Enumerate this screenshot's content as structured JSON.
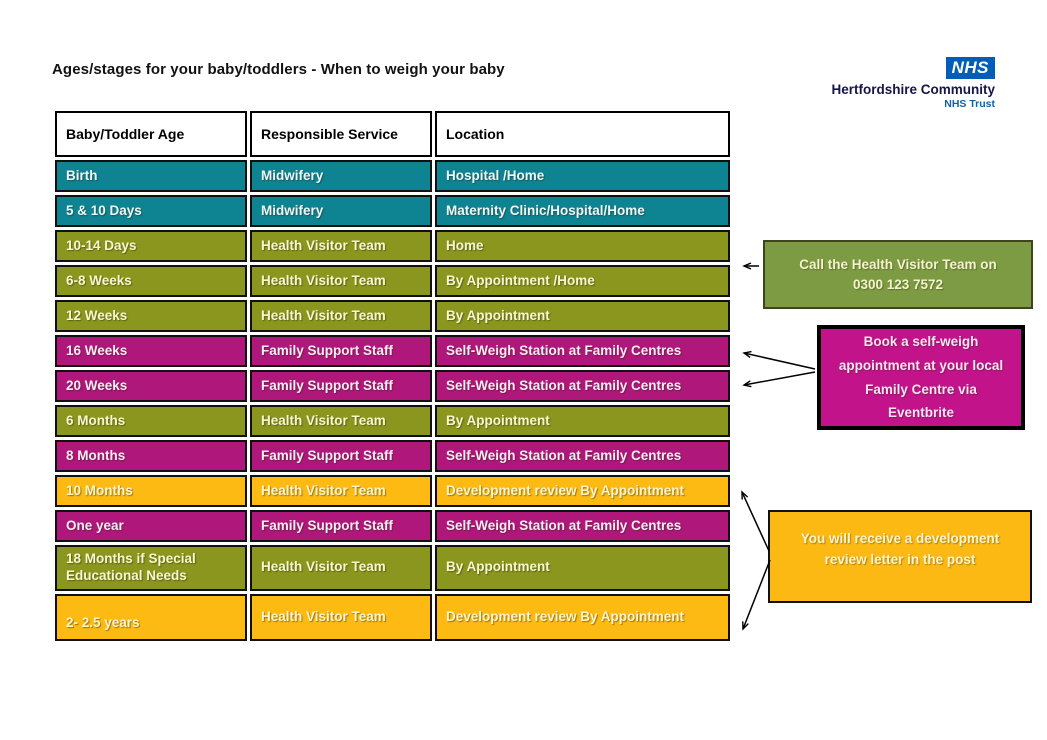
{
  "page": {
    "title": "Ages/stages for your baby/toddlers - When to weigh your baby"
  },
  "logo": {
    "nhs": "NHS",
    "org": "Hertfordshire Community",
    "sub": "NHS Trust"
  },
  "table": {
    "headers": [
      "Baby/Toddler Age",
      "Responsible Service",
      "Location"
    ],
    "rows": [
      {
        "age": "Birth",
        "service": "Midwifery",
        "location": "Hospital /Home",
        "color": "teal"
      },
      {
        "age": "5 & 10 Days",
        "service": "Midwifery",
        "location": "Maternity Clinic/Hospital/Home",
        "color": "teal"
      },
      {
        "age": "10-14 Days",
        "service": "Health Visitor Team",
        "location": "Home",
        "color": "olive"
      },
      {
        "age": "6-8 Weeks",
        "service": "Health Visitor Team",
        "location": "By Appointment /Home",
        "color": "olive"
      },
      {
        "age": "12 Weeks",
        "service": "Health Visitor Team",
        "location": "By Appointment",
        "color": "olive"
      },
      {
        "age": "16 Weeks",
        "service": "Family Support Staff",
        "location": "Self-Weigh Station at Family Centres",
        "color": "magenta"
      },
      {
        "age": "20 Weeks",
        "service": "Family Support Staff",
        "location": "Self-Weigh Station at Family Centres",
        "color": "magenta"
      },
      {
        "age": "6 Months",
        "service": "Health Visitor Team",
        "location": "By Appointment",
        "color": "olive"
      },
      {
        "age": "8 Months",
        "service": "Family Support Staff",
        "location": "Self-Weigh Station at Family Centres",
        "color": "magenta"
      },
      {
        "age": "10 Months",
        "service": "Health Visitor Team",
        "location": "Development review By Appointment",
        "color": "yellow"
      },
      {
        "age": "One year",
        "service": "Family Support Staff",
        "location": "Self-Weigh Station at Family Centres",
        "color": "magenta"
      },
      {
        "age": "18 Months if Special Educational Needs",
        "service": "Health Visitor Team",
        "location": "By Appointment",
        "color": "olive"
      },
      {
        "age": "2- 2.5 years",
        "service": "Health Visitor Team",
        "location": "Development review By Appointment",
        "color": "yellow"
      }
    ]
  },
  "callouts": [
    {
      "id": "health-visitor-callout",
      "text": "Call the Health Visitor Team on 0300 123 7572"
    },
    {
      "id": "self-weigh-callout",
      "text": "Book a self-weigh appointment at your local Family Centre via Eventbrite"
    },
    {
      "id": "development-review-callout",
      "text": "You will receive a development review letter in the post"
    }
  ],
  "colors": {
    "teal": "#0e8493",
    "olive": "#8a961e",
    "magenta": "#b0177b",
    "yellow": "#fcba12",
    "callout_olive": "#7d9b42",
    "callout_magenta": "#c2138b",
    "callout_yellow": "#fcb813",
    "nhs_blue": "#005eb8"
  }
}
